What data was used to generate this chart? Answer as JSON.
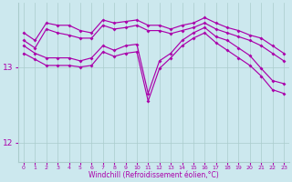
{
  "xlabel": "Windchill (Refroidissement éolien,°C)",
  "bg_color": "#cce8ee",
  "line_color": "#aa00aa",
  "grid_color": "#aacccc",
  "xlim": [
    -0.5,
    23.5
  ],
  "ylim": [
    11.75,
    13.85
  ],
  "yticks": [
    12,
    13
  ],
  "xticks": [
    0,
    1,
    2,
    3,
    4,
    5,
    6,
    7,
    8,
    9,
    10,
    11,
    12,
    13,
    14,
    15,
    16,
    17,
    18,
    19,
    20,
    21,
    22,
    23
  ],
  "lines": [
    [
      13.45,
      13.35,
      13.58,
      13.55,
      13.55,
      13.48,
      13.45,
      13.62,
      13.58,
      13.6,
      13.62,
      13.55,
      13.55,
      13.5,
      13.55,
      13.58,
      13.65,
      13.58,
      13.52,
      13.48,
      13.42,
      13.38,
      13.28,
      13.18
    ],
    [
      13.35,
      13.25,
      13.5,
      13.45,
      13.42,
      13.38,
      13.38,
      13.55,
      13.5,
      13.52,
      13.55,
      13.48,
      13.48,
      13.44,
      13.48,
      13.52,
      13.58,
      13.5,
      13.45,
      13.4,
      13.35,
      13.28,
      13.18,
      13.08
    ],
    [
      13.28,
      13.18,
      13.12,
      13.12,
      13.12,
      13.08,
      13.12,
      13.28,
      13.22,
      13.28,
      13.3,
      12.65,
      13.08,
      13.18,
      13.35,
      13.45,
      13.52,
      13.4,
      13.35,
      13.25,
      13.15,
      12.98,
      12.82,
      12.78
    ],
    [
      13.18,
      13.1,
      13.02,
      13.02,
      13.02,
      13.0,
      13.02,
      13.2,
      13.14,
      13.18,
      13.2,
      12.55,
      12.98,
      13.12,
      13.28,
      13.38,
      13.45,
      13.32,
      13.22,
      13.12,
      13.02,
      12.88,
      12.7,
      12.65
    ]
  ]
}
